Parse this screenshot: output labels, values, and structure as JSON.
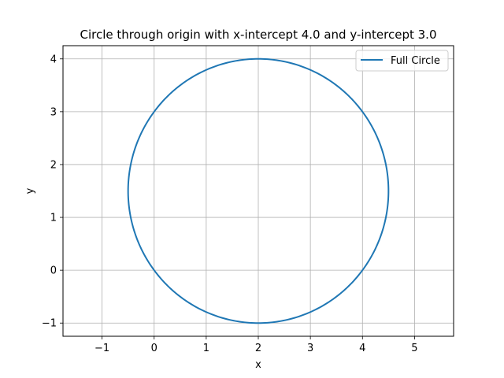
{
  "chart_data": {
    "type": "line",
    "title": "Circle through origin with x-intercept 4.0 and y-intercept 3.0",
    "xlabel": "x",
    "ylabel": "y",
    "xlim": [
      -1.75,
      5.75
    ],
    "ylim": [
      -1.25,
      4.25
    ],
    "xticks": [
      -1,
      0,
      1,
      2,
      3,
      4,
      5
    ],
    "yticks": [
      -1,
      0,
      1,
      2,
      3,
      4
    ],
    "xtick_labels": [
      "−1",
      "0",
      "1",
      "2",
      "3",
      "4",
      "5"
    ],
    "ytick_labels": [
      "−1",
      "0",
      "1",
      "2",
      "3",
      "4"
    ],
    "grid": true,
    "legend_position": "top-right",
    "series": [
      {
        "name": "Full Circle",
        "color": "#1f77b4",
        "shape": "circle",
        "center": [
          2.0,
          1.5
        ],
        "radius": 2.5
      }
    ]
  }
}
